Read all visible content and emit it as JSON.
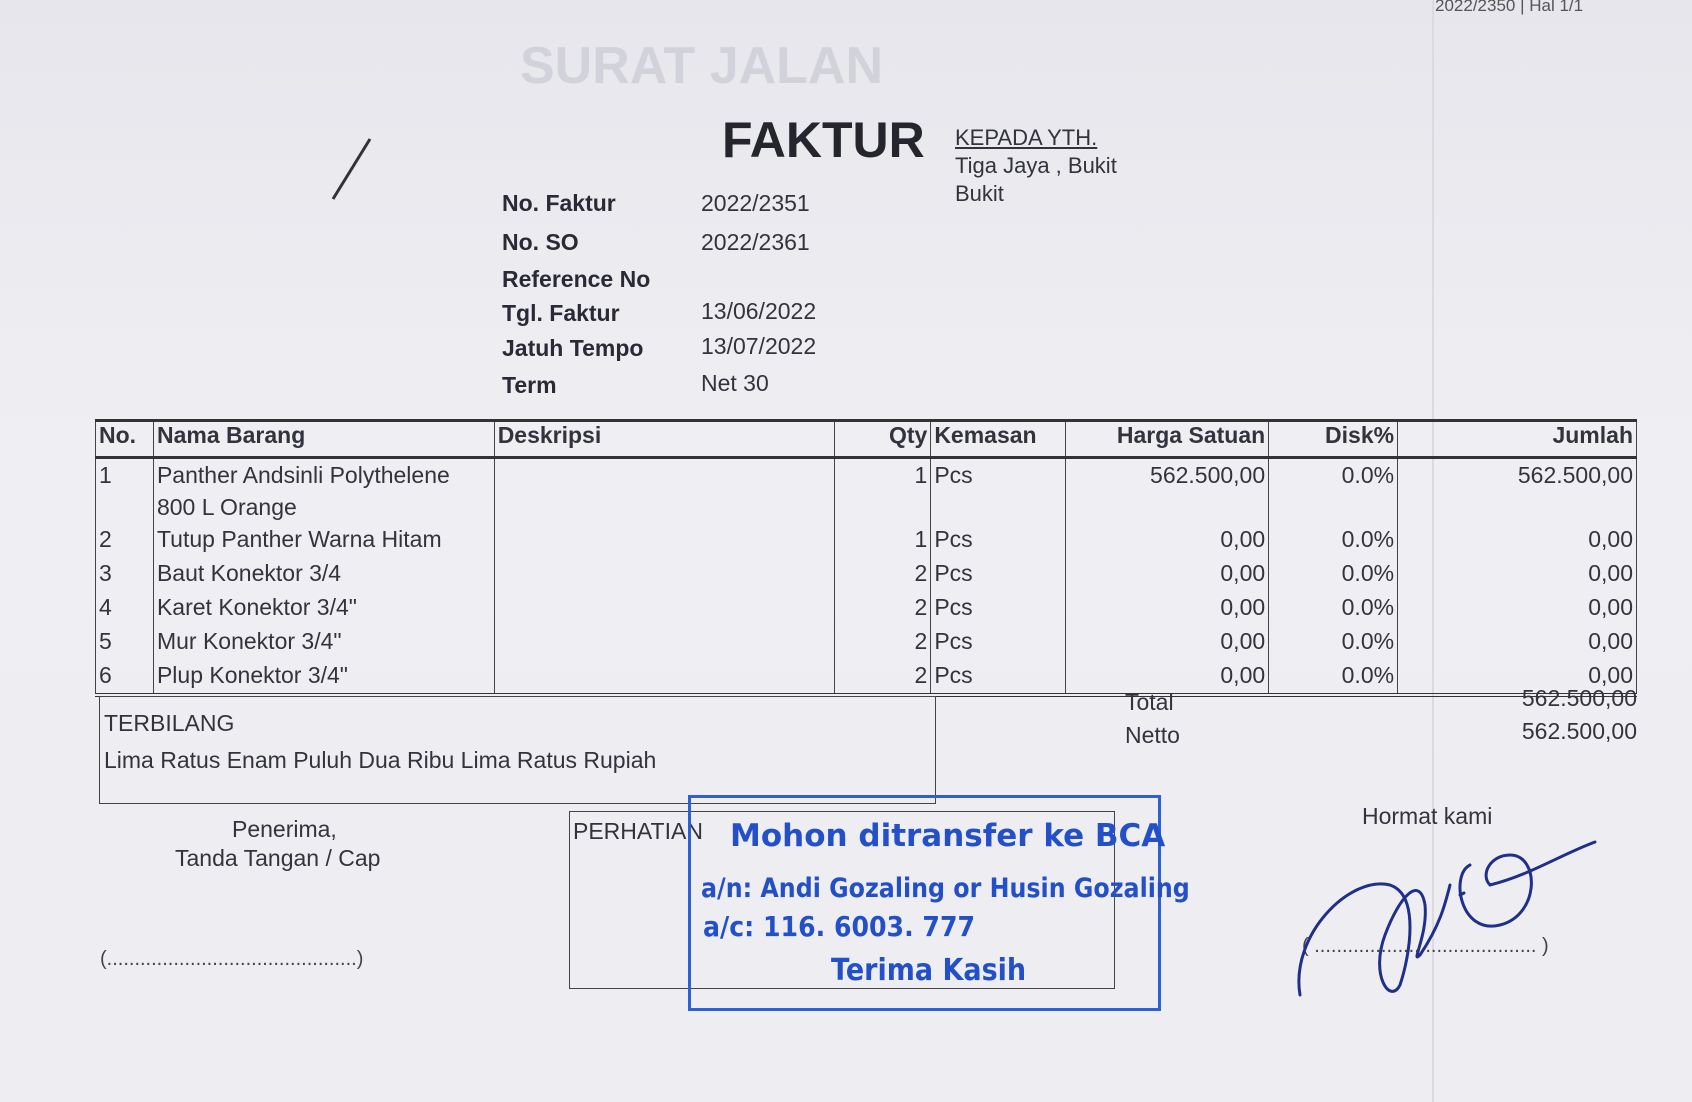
{
  "ghost_title": "SURAT JALAN",
  "top_reference": "2022/2350 | Hal 1/1",
  "document_title": "FAKTUR",
  "fields": [
    {
      "label": "No. Faktur",
      "value": "2022/2351"
    },
    {
      "label": "No. SO",
      "value": "2022/2361"
    },
    {
      "label": "Reference No",
      "value": ""
    },
    {
      "label": "Tgl. Faktur",
      "value": "13/06/2022"
    },
    {
      "label": "Jatuh Tempo",
      "value": "13/07/2022"
    },
    {
      "label": "Term",
      "value": "Net 30"
    }
  ],
  "recipient": {
    "heading": "KEPADA YTH.",
    "line1": "Tiga Jaya ,  Bukit",
    "line2": "Bukit"
  },
  "table": {
    "headers": [
      "No.",
      "Nama Barang",
      "Deskripsi",
      "Qty",
      "Kemasan",
      "Harga Satuan",
      "Disk%",
      "Jumlah"
    ],
    "rows": [
      {
        "no": "1",
        "name": "Panther Andsinli Polythelene",
        "name2": "800 L Orange",
        "desc": "",
        "qty": "1",
        "unit": "Pcs",
        "price": "562.500,00",
        "disc": "0.0%",
        "total": "562.500,00"
      },
      {
        "no": "2",
        "name": "Tutup Panther Warna Hitam",
        "desc": "",
        "qty": "1",
        "unit": "Pcs",
        "price": "0,00",
        "disc": "0.0%",
        "total": "0,00"
      },
      {
        "no": "3",
        "name": "Baut Konektor 3/4",
        "desc": "",
        "qty": "2",
        "unit": "Pcs",
        "price": "0,00",
        "disc": "0.0%",
        "total": "0,00"
      },
      {
        "no": "4",
        "name": "Karet Konektor 3/4\"",
        "desc": "",
        "qty": "2",
        "unit": "Pcs",
        "price": "0,00",
        "disc": "0.0%",
        "total": "0,00"
      },
      {
        "no": "5",
        "name": "Mur Konektor 3/4\"",
        "desc": "",
        "qty": "2",
        "unit": "Pcs",
        "price": "0,00",
        "disc": "0.0%",
        "total": "0,00"
      },
      {
        "no": "6",
        "name": "Plup Konektor 3/4\"",
        "desc": "",
        "qty": "2",
        "unit": "Pcs",
        "price": "0,00",
        "disc": "0.0%",
        "total": "0,00"
      }
    ]
  },
  "totals": {
    "total_label": "Total",
    "total_value": "562.500,00",
    "netto_label": "Netto",
    "netto_value": "562.500,00"
  },
  "terbilang": {
    "label": "TERBILANG",
    "text": "Lima Ratus Enam Puluh Dua Ribu Lima Ratus Rupiah"
  },
  "receiver": {
    "line1": "Penerima,",
    "line2": "Tanda Tangan / Cap",
    "sign_line": "(.............................................)"
  },
  "perhatian": {
    "label": "PERHATIAN"
  },
  "stamp": {
    "line1": "Mohon ditransfer ke BCA",
    "line2": "a/n: Andi Gozaling or Husin Gozaling",
    "line3": "a/c: 116. 6003. 777",
    "line4": "Terima Kasih",
    "color": "#2350c8"
  },
  "sender": {
    "label": "Hormat kami",
    "sign_line": "( ........................................ )",
    "signature_color": "#1f2f8a"
  }
}
